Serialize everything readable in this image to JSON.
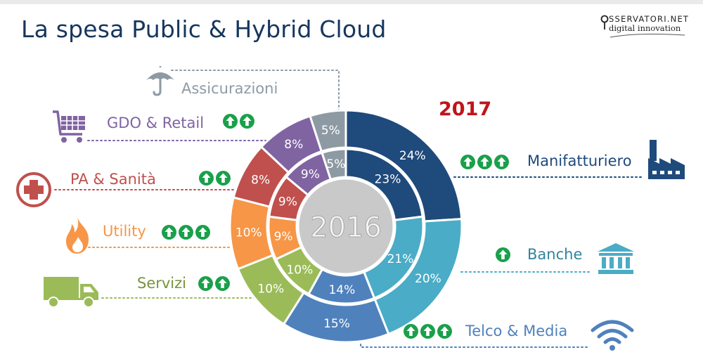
{
  "title": "La spesa Public & Hybrid Cloud",
  "logo": {
    "line1": "SSERVATORI.NET",
    "line2": "digital innovation"
  },
  "chart_data": {
    "type": "pie",
    "subtype": "nested-donut",
    "title": "La spesa Public & Hybrid Cloud",
    "inner_ring_label": "2016",
    "outer_ring_label": "2017",
    "categories": [
      "Manifatturiero",
      "Banche",
      "Telco & Media",
      "Servizi",
      "Utility",
      "PA & Sanità",
      "GDO & Retail",
      "Assicurazioni"
    ],
    "series": [
      {
        "name": "2016",
        "values": [
          23,
          21,
          14,
          10,
          9,
          9,
          9,
          5
        ],
        "labels": [
          "23%",
          "21%",
          "14%",
          "10%",
          "9%",
          "9%",
          "9%",
          "5%"
        ]
      },
      {
        "name": "2017",
        "values": [
          24,
          20,
          15,
          10,
          10,
          8,
          8,
          5
        ],
        "labels": [
          "24%",
          "20%",
          "15%",
          "10%",
          "10%",
          "8%",
          "8%",
          "5%"
        ]
      }
    ],
    "growth_arrows": [
      3,
      1,
      3,
      2,
      3,
      2,
      2,
      0
    ],
    "colors": [
      "#1f4a7c",
      "#4aacc6",
      "#4f81bd",
      "#9bbb59",
      "#f79646",
      "#c0504d",
      "#8064a2",
      "#8e9aa3"
    ],
    "icons": [
      "factory-icon",
      "bank-icon",
      "wifi-icon",
      "truck-icon",
      "flame-icon",
      "medical-cross-icon",
      "shopping-cart-icon",
      "umbrella-icon"
    ]
  }
}
